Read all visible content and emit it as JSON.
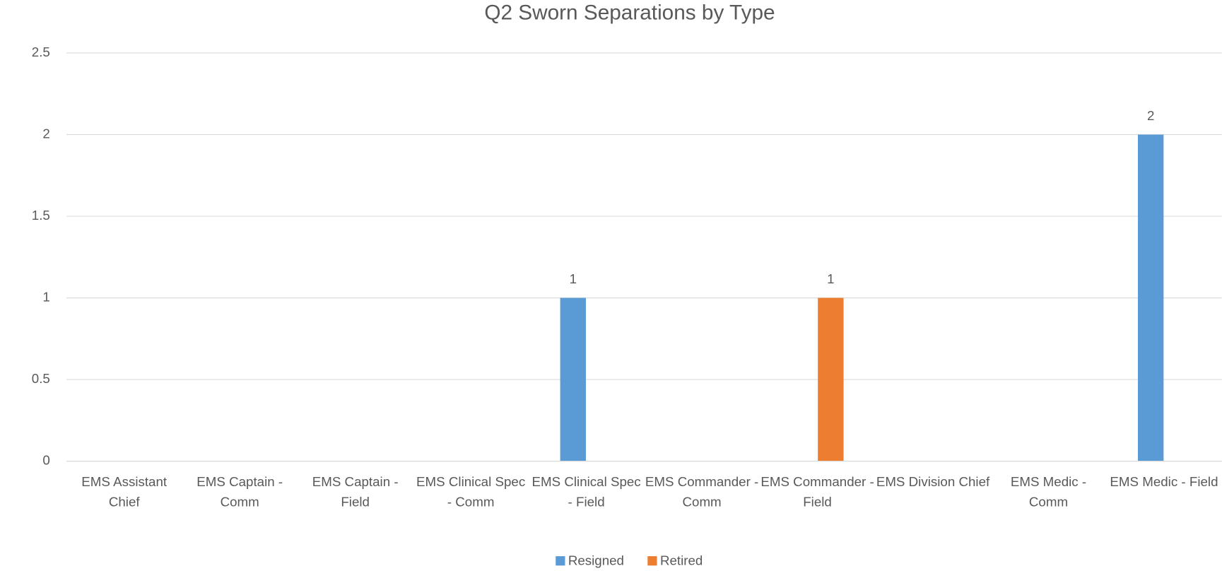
{
  "chart_data": {
    "type": "bar",
    "title": "Q2 Sworn Separations by Type",
    "categories": [
      "EMS Assistant Chief",
      "EMS Captain - Comm",
      "EMS Captain - Field",
      "EMS Clinical Spec - Comm",
      "EMS Clinical Spec - Field",
      "EMS Commander - Comm",
      "EMS Commander - Field",
      "EMS Division Chief",
      "EMS Medic - Comm",
      "EMS Medic - Field"
    ],
    "series": [
      {
        "name": "Resigned",
        "color": "#5b9bd5",
        "values": [
          null,
          null,
          null,
          null,
          1,
          null,
          null,
          null,
          null,
          2
        ]
      },
      {
        "name": "Retired",
        "color": "#ed7d31",
        "values": [
          null,
          null,
          null,
          null,
          null,
          null,
          1,
          null,
          null,
          null
        ]
      }
    ],
    "ylim": [
      0,
      2.5
    ],
    "yticks": [
      0,
      0.5,
      1,
      1.5,
      2,
      2.5
    ],
    "grid": true,
    "legend": "bottom"
  }
}
